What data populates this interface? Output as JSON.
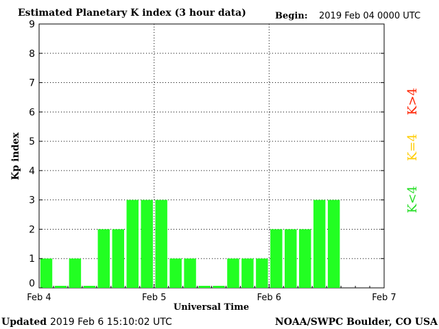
{
  "header": {
    "title": "Estimated Planetary K index (3 hour data)",
    "begin_label": "Begin:",
    "begin_value": "2019 Feb 04 0000 UTC"
  },
  "footer": {
    "updated_label": "Updated",
    "updated_value": "2019 Feb  6 15:10:02 UTC",
    "source": "NOAA/SWPC Boulder, CO USA"
  },
  "legend": {
    "high": {
      "label": "K>4",
      "color": "#ff2200"
    },
    "equal": {
      "label": "K=4",
      "color": "#ffcc00"
    },
    "low": {
      "label": "K<4",
      "color": "#22dd22"
    }
  },
  "chart_data": {
    "type": "bar",
    "title": "Estimated Planetary K index (3 hour data)",
    "xlabel": "Universal Time",
    "ylabel": "Kp index",
    "ylim": [
      0,
      9
    ],
    "y_ticks": [
      "0",
      "1",
      "2",
      "3",
      "4",
      "5",
      "6",
      "7",
      "8",
      "9"
    ],
    "x_ticks": [
      "Feb 4",
      "Feb 5",
      "Feb 6",
      "Feb 7"
    ],
    "x_range_days": 3,
    "slots_per_day": 8,
    "grid": true,
    "bar_color": "#22ff22",
    "values": [
      1,
      0,
      1,
      0,
      2,
      2,
      3,
      3,
      3,
      1,
      1,
      0,
      0,
      1,
      1,
      1,
      2,
      2,
      2,
      3,
      3
    ]
  }
}
